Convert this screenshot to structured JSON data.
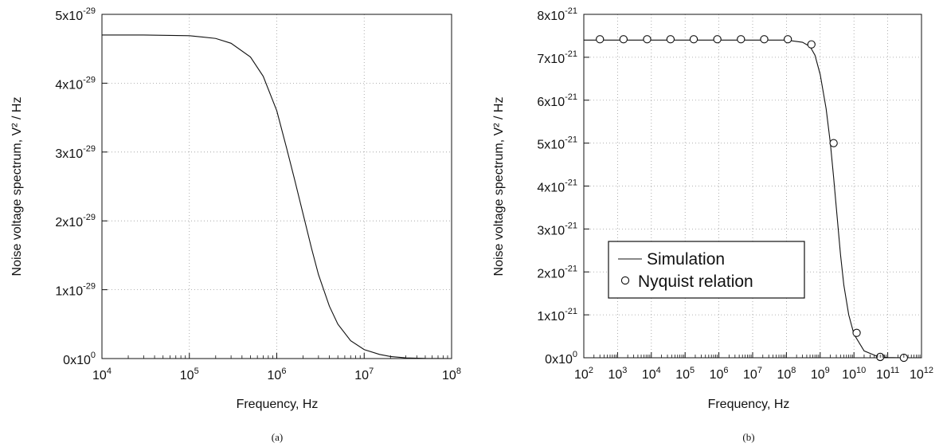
{
  "figure": {
    "colors": {
      "ink": "#111111",
      "grid": "#9a9a9a",
      "background": "#ffffff"
    }
  },
  "chart_data": [
    {
      "type": "line",
      "caption": "(a)",
      "xlabel": "Frequency, Hz",
      "ylabel": "Noise voltage spectrum, V² / Hz",
      "x_scale": "log",
      "xlim": [
        10000,
        100000000
      ],
      "ylim": [
        0,
        5e-29
      ],
      "x_ticks": [
        {
          "value": 10000,
          "base": "10",
          "exp": "4"
        },
        {
          "value": 100000,
          "base": "10",
          "exp": "5"
        },
        {
          "value": 1000000,
          "base": "10",
          "exp": "6"
        },
        {
          "value": 10000000,
          "base": "10",
          "exp": "7"
        },
        {
          "value": 100000000,
          "base": "10",
          "exp": "8"
        }
      ],
      "y_ticks": [
        {
          "value": 0,
          "base": "0x10",
          "exp": "0"
        },
        {
          "value": 1e-29,
          "base": "1x10",
          "exp": "-29"
        },
        {
          "value": 2e-29,
          "base": "2x10",
          "exp": "-29"
        },
        {
          "value": 3e-29,
          "base": "3x10",
          "exp": "-29"
        },
        {
          "value": 4e-29,
          "base": "4x10",
          "exp": "-29"
        },
        {
          "value": 5e-29,
          "base": "5x10",
          "exp": "-29"
        }
      ],
      "grid": true,
      "series": [
        {
          "style": "line",
          "points": [
            [
              10000,
              4.7e-29
            ],
            [
              30000,
              4.7e-29
            ],
            [
              100000,
              4.69e-29
            ],
            [
              200000,
              4.65e-29
            ],
            [
              300000,
              4.58e-29
            ],
            [
              500000,
              4.38e-29
            ],
            [
              700000,
              4.1e-29
            ],
            [
              1000000,
              3.6e-29
            ],
            [
              1300000,
              3.05e-29
            ],
            [
              1600000,
              2.6e-29
            ],
            [
              2000000,
              2.1e-29
            ],
            [
              2500000,
              1.6e-29
            ],
            [
              3000000,
              1.22e-29
            ],
            [
              4000000,
              7.6e-30
            ],
            [
              5000000,
              5e-30
            ],
            [
              7000000,
              2.6e-30
            ],
            [
              10000000,
              1.3e-30
            ],
            [
              15000000,
              6e-31
            ],
            [
              20000000,
              3e-31
            ],
            [
              30000000,
              1e-31
            ],
            [
              50000000,
              2e-32
            ],
            [
              100000000,
              0
            ]
          ]
        }
      ]
    },
    {
      "type": "line",
      "caption": "(b)",
      "xlabel": "Frequency, Hz",
      "ylabel": "Noise voltage spectrum, V² / Hz",
      "x_scale": "log",
      "xlim": [
        100,
        1000000000000
      ],
      "ylim": [
        0,
        8e-21
      ],
      "x_ticks": [
        {
          "value": 100,
          "base": "10",
          "exp": "2"
        },
        {
          "value": 1000,
          "base": "10",
          "exp": "3"
        },
        {
          "value": 10000,
          "base": "10",
          "exp": "4"
        },
        {
          "value": 100000,
          "base": "10",
          "exp": "5"
        },
        {
          "value": 1000000,
          "base": "10",
          "exp": "6"
        },
        {
          "value": 10000000,
          "base": "10",
          "exp": "7"
        },
        {
          "value": 100000000,
          "base": "10",
          "exp": "8"
        },
        {
          "value": 1000000000,
          "base": "10",
          "exp": "9"
        },
        {
          "value": 10000000000,
          "base": "10",
          "exp": "10"
        },
        {
          "value": 100000000000,
          "base": "10",
          "exp": "11"
        },
        {
          "value": 1000000000000,
          "base": "10",
          "exp": "12"
        }
      ],
      "y_ticks": [
        {
          "value": 0,
          "base": "0x10",
          "exp": "0"
        },
        {
          "value": 1e-21,
          "base": "1x10",
          "exp": "-21"
        },
        {
          "value": 2e-21,
          "base": "2x10",
          "exp": "-21"
        },
        {
          "value": 3e-21,
          "base": "3x10",
          "exp": "-21"
        },
        {
          "value": 4e-21,
          "base": "4x10",
          "exp": "-21"
        },
        {
          "value": 5e-21,
          "base": "5x10",
          "exp": "-21"
        },
        {
          "value": 6e-21,
          "base": "6x10",
          "exp": "-21"
        },
        {
          "value": 7e-21,
          "base": "7x10",
          "exp": "-21"
        },
        {
          "value": 8e-21,
          "base": "8x10",
          "exp": "-21"
        }
      ],
      "grid": true,
      "legend_position": "center-left",
      "series": [
        {
          "name": "Simulation",
          "style": "line",
          "points": [
            [
              100,
              7.4e-21
            ],
            [
              100000000,
              7.4e-21
            ],
            [
              300000000,
              7.35e-21
            ],
            [
              500000000,
              7.25e-21
            ],
            [
              700000000,
              7.05e-21
            ],
            [
              1000000000,
              6.6e-21
            ],
            [
              1500000000,
              5.8e-21
            ],
            [
              2000000000,
              5e-21
            ],
            [
              2500000000,
              4.2e-21
            ],
            [
              3000000000,
              3.5e-21
            ],
            [
              4000000000,
              2.4e-21
            ],
            [
              5000000000,
              1.7e-21
            ],
            [
              7000000000,
              1e-21
            ],
            [
              10000000000,
              5.5e-22
            ],
            [
              20000000000,
              1.6e-22
            ],
            [
              50000000000,
              3e-23
            ],
            [
              100000000000,
              5e-24
            ],
            [
              300000000000,
              0
            ]
          ]
        },
        {
          "name": "Nyquist relation",
          "style": "markers",
          "points": [
            [
              300,
              7.42e-21
            ],
            [
              1500,
              7.42e-21
            ],
            [
              7500,
              7.42e-21
            ],
            [
              37000,
              7.42e-21
            ],
            [
              180000,
              7.42e-21
            ],
            [
              900000,
              7.42e-21
            ],
            [
              4500000,
              7.42e-21
            ],
            [
              22000000,
              7.42e-21
            ],
            [
              110000000,
              7.42e-21
            ],
            [
              550000000,
              7.3e-21
            ],
            [
              2500000000,
              5e-21
            ],
            [
              12000000000,
              5.8e-22
            ],
            [
              60000000000,
              2e-23
            ],
            [
              300000000000,
              0
            ]
          ]
        }
      ]
    }
  ]
}
